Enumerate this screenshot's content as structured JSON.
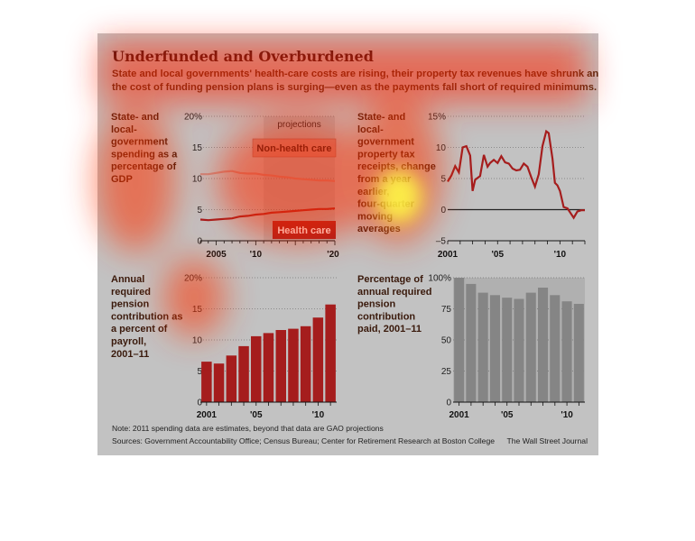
{
  "header": {
    "title": "Underfunded and Overburdened",
    "subtitle_lines": [
      "State and local governments' health-care costs are rising, their property tax revenues have shrunk and",
      "the cost of funding pension plans is surging—even as the payments fall short of required minimums."
    ]
  },
  "footer": {
    "note": "Note: 2011 spending data are estimates, beyond that data are GAO projections",
    "sources": "Sources: Government Accountability Office; Census Bureau; Center for Retirement Research at Boston College",
    "credit": "The Wall Street Journal"
  },
  "colors": {
    "background": "#c2c2c2",
    "accent": "#a51d1d",
    "grey_series": "#c98a80",
    "bar_grey": "#858585"
  },
  "chart_data": [
    {
      "type": "line",
      "label_lines": [
        "State- and",
        "local-",
        "government",
        "spending as a",
        "percentage of",
        "GDP"
      ],
      "x_ticks": [
        "2005",
        "'10",
        "'20"
      ],
      "y_ticks": [
        "20%",
        "15",
        "10",
        "5",
        "0"
      ],
      "ylim": [
        0,
        20
      ],
      "xlim": [
        2003,
        2020
      ],
      "projection_start": 2011,
      "projection_label": "projections",
      "grid": true,
      "series": [
        {
          "name": "Non-health care",
          "x": [
            2003,
            2004,
            2005,
            2006,
            2007,
            2008,
            2009,
            2010,
            2011,
            2012,
            2013,
            2014,
            2015,
            2016,
            2017,
            2018,
            2019,
            2020
          ],
          "values": [
            10.7,
            10.7,
            10.9,
            11.1,
            11.2,
            10.9,
            10.8,
            10.8,
            10.6,
            10.5,
            10.3,
            10.2,
            10.0,
            9.9,
            9.8,
            9.7,
            9.7,
            9.6
          ]
        },
        {
          "name": "Health care",
          "x": [
            2003,
            2004,
            2005,
            2006,
            2007,
            2008,
            2009,
            2010,
            2011,
            2012,
            2013,
            2014,
            2015,
            2016,
            2017,
            2018,
            2019,
            2020
          ],
          "values": [
            3.4,
            3.3,
            3.4,
            3.5,
            3.6,
            3.9,
            4.0,
            4.2,
            4.3,
            4.5,
            4.6,
            4.7,
            4.8,
            4.9,
            5.0,
            5.1,
            5.1,
            5.2
          ]
        }
      ]
    },
    {
      "type": "line",
      "label_lines": [
        "State- and",
        "local-",
        "government",
        "property tax",
        "receipts, change",
        "from a year",
        "earlier,",
        "four-quarter",
        "moving",
        "averages"
      ],
      "x_ticks": [
        "2001",
        "'05",
        "'10"
      ],
      "y_ticks": [
        "15%",
        "10",
        "5",
        "0",
        "–5"
      ],
      "ylim": [
        -5,
        15
      ],
      "xlim": [
        2001,
        2012
      ],
      "grid": true,
      "series": [
        {
          "x": [
            2001.0,
            2001.3,
            2001.6,
            2001.9,
            2002.2,
            2002.5,
            2002.8,
            2003.0,
            2003.2,
            2003.6,
            2003.9,
            2004.2,
            2004.4,
            2004.7,
            2005.0,
            2005.3,
            2005.6,
            2005.9,
            2006.2,
            2006.5,
            2006.8,
            2007.1,
            2007.4,
            2007.7,
            2008.0,
            2008.3,
            2008.6,
            2008.9,
            2009.1,
            2009.4,
            2009.6,
            2009.8,
            2010.0,
            2010.3,
            2010.6,
            2010.9,
            2011.1,
            2011.4,
            2011.7,
            2012.0
          ],
          "values": [
            4.5,
            5.5,
            7.0,
            6.0,
            10.0,
            10.2,
            8.7,
            3.0,
            4.8,
            5.4,
            8.8,
            6.9,
            7.5,
            8.0,
            7.5,
            8.6,
            7.6,
            7.4,
            6.6,
            6.3,
            6.4,
            7.4,
            6.9,
            5.2,
            3.7,
            5.7,
            10.2,
            12.6,
            12.3,
            8.2,
            4.3,
            3.9,
            3.0,
            0.4,
            0.2,
            -0.7,
            -1.3,
            -0.3,
            -0.1,
            -0.1
          ]
        }
      ]
    },
    {
      "type": "bar",
      "label_lines": [
        "Annual",
        "required",
        "pension",
        "contribution as",
        "a percent of",
        "payroll,",
        "2001–11"
      ],
      "categories": [
        "2001",
        "2002",
        "2003",
        "2004",
        "2005",
        "2006",
        "2007",
        "2008",
        "2009",
        "2010",
        "2011"
      ],
      "x_ticks": [
        "2001",
        "'05",
        "'10"
      ],
      "y_ticks": [
        "20%",
        "15",
        "10",
        "5",
        "0"
      ],
      "values": [
        6.5,
        6.2,
        7.5,
        9.0,
        10.6,
        11.1,
        11.6,
        11.8,
        12.2,
        13.6,
        15.7
      ],
      "ylim": [
        0,
        20
      ],
      "grid": true
    },
    {
      "type": "bar",
      "label_lines": [
        "Percentage of",
        "annual required",
        "pension",
        "contribution",
        "paid, 2001–11"
      ],
      "categories": [
        "2001",
        "2002",
        "2003",
        "2004",
        "2005",
        "2006",
        "2007",
        "2008",
        "2009",
        "2010",
        "2011"
      ],
      "x_ticks": [
        "2001",
        "'05",
        "'10"
      ],
      "y_ticks": [
        "100%",
        "75",
        "50",
        "25",
        "0"
      ],
      "values": [
        100,
        95,
        88,
        86,
        84,
        83,
        88,
        92,
        86,
        81,
        79
      ],
      "ylim": [
        0,
        100
      ],
      "grid": true
    }
  ]
}
